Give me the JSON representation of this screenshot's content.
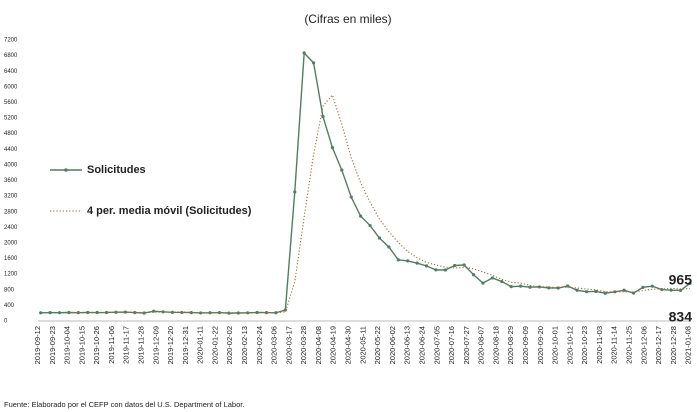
{
  "chart_data": {
    "type": "line",
    "title": "(Cifras en miles)",
    "source": "Fuente: Elaborado por el CEFP con datos del U.S. Department of Labor.",
    "x": [
      "2019-09-14",
      "2019-09-21",
      "2019-09-28",
      "2019-10-05",
      "2019-10-12",
      "2019-10-19",
      "2019-10-26",
      "2019-11-02",
      "2019-11-09",
      "2019-11-16",
      "2019-11-23",
      "2019-11-30",
      "2019-12-07",
      "2019-12-14",
      "2019-12-21",
      "2019-12-28",
      "2020-01-04",
      "2020-01-11",
      "2020-01-18",
      "2020-01-25",
      "2020-02-01",
      "2020-02-08",
      "2020-02-15",
      "2020-02-22",
      "2020-02-29",
      "2020-03-07",
      "2020-03-14",
      "2020-03-21",
      "2020-03-28",
      "2020-04-04",
      "2020-04-11",
      "2020-04-18",
      "2020-04-25",
      "2020-05-02",
      "2020-05-09",
      "2020-05-16",
      "2020-05-23",
      "2020-05-30",
      "2020-06-06",
      "2020-06-13",
      "2020-06-20",
      "2020-06-27",
      "2020-07-04",
      "2020-07-11",
      "2020-07-18",
      "2020-07-25",
      "2020-08-01",
      "2020-08-08",
      "2020-08-15",
      "2020-08-22",
      "2020-08-29",
      "2020-09-05",
      "2020-09-12",
      "2020-09-19",
      "2020-09-26",
      "2020-10-03",
      "2020-10-10",
      "2020-10-17",
      "2020-10-24",
      "2020-10-31",
      "2020-11-07",
      "2020-11-14",
      "2020-11-21",
      "2020-11-28",
      "2020-12-05",
      "2020-12-12",
      "2020-12-19",
      "2020-12-26",
      "2021-01-02",
      "2021-01-09"
    ],
    "series": [
      {
        "name": "Solicitudes",
        "color": "#4f7f63",
        "values": [
          210,
          215,
          213,
          218,
          214,
          218,
          217,
          218,
          225,
          228,
          215,
          205,
          252,
          235,
          222,
          220,
          215,
          207,
          211,
          216,
          202,
          205,
          210,
          219,
          216,
          211,
          282,
          3307,
          6867,
          6615,
          5237,
          4442,
          3867,
          3176,
          2687,
          2446,
          2126,
          1897,
          1566,
          1540,
          1482,
          1413,
          1310,
          1307,
          1422,
          1435,
          1186,
          971,
          1104,
          1011,
          881,
          893,
          866,
          873,
          849,
          845,
          898,
          787,
          751,
          757,
          711,
          748,
          787,
          716,
          862,
          892,
          806,
          790,
          784,
          965
        ]
      },
      {
        "name": "4 per. media móvil (Solicitudes)",
        "color": "#b0642a",
        "dash": "dotted",
        "values": [
          null,
          null,
          null,
          214,
          215,
          216,
          217,
          217,
          220,
          222,
          222,
          218,
          225,
          227,
          229,
          232,
          223,
          216,
          213,
          212,
          209,
          209,
          208,
          209,
          213,
          214,
          232,
          1004,
          2667,
          4268,
          5507,
          5790,
          5040,
          4181,
          3543,
          3044,
          2609,
          2289,
          2009,
          1782,
          1621,
          1500,
          1436,
          1378,
          1363,
          1369,
          1338,
          1254,
          1174,
          1068,
          992,
          972,
          913,
          878,
          870,
          858,
          866,
          845,
          820,
          798,
          752,
          742,
          751,
          741,
          778,
          814,
          819,
          838,
          818,
          834
        ]
      }
    ],
    "end_label_colors": [
      "#4f7f63",
      "#a47a4c"
    ],
    "xlim": [
      "2019-09-12",
      "2021-01-09"
    ],
    "xticks": [
      "2019-09-12",
      "2019-09-23",
      "2019-10-04",
      "2019-10-15",
      "2019-10-26",
      "2019-11-06",
      "2019-11-17",
      "2019-11-28",
      "2019-12-09",
      "2019-12-20",
      "2019-12-31",
      "2020-01-11",
      "2020-01-22",
      "2020-02-02",
      "2020-02-13",
      "2020-02-24",
      "2020-03-06",
      "2020-03-17",
      "2020-03-28",
      "2020-04-08",
      "2020-04-19",
      "2020-04-30",
      "2020-05-11",
      "2020-05-22",
      "2020-06-02",
      "2020-06-13",
      "2020-06-24",
      "2020-07-05",
      "2020-07-16",
      "2020-07-27",
      "2020-08-07",
      "2020-08-18",
      "2020-08-29",
      "2020-09-09",
      "2020-09-20",
      "2020-10-01",
      "2020-10-12",
      "2020-10-23",
      "2020-11-03",
      "2020-11-14",
      "2020-11-25",
      "2020-12-06",
      "2020-12-17",
      "2020-12-28",
      "2021-01-08"
    ],
    "ylim": [
      0,
      7200
    ],
    "yticks": [
      0,
      400,
      800,
      1200,
      1600,
      2000,
      2400,
      2800,
      3200,
      3600,
      4000,
      4400,
      4800,
      5200,
      5600,
      6000,
      6400,
      6800,
      7200
    ],
    "grid": false,
    "legend": "left"
  }
}
